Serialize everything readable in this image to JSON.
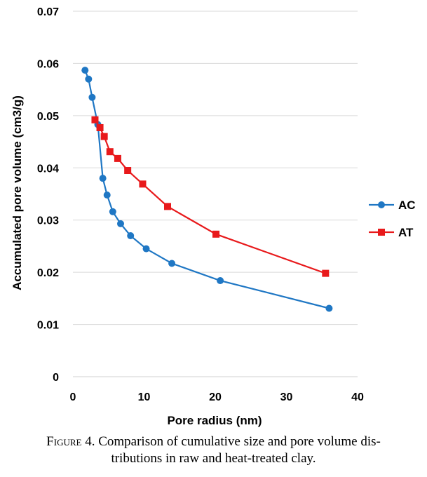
{
  "chart_data": {
    "type": "line",
    "xlabel": "Pore radius (nm)",
    "ylabel": "Accumulated pore volume (cm3/g)",
    "xlim": [
      0,
      40
    ],
    "ylim": [
      0,
      0.07
    ],
    "x_ticks": [
      "0",
      "10",
      "20",
      "30",
      "40"
    ],
    "y_ticks": [
      "0",
      "0.01",
      "0.02",
      "0.03",
      "0.04",
      "0.05",
      "0.06",
      "0.07"
    ],
    "grid": "horizontal",
    "legend_position": "right",
    "series": [
      {
        "name": "AC",
        "color": "#1f77c4",
        "marker": "circle",
        "points": [
          [
            1.7,
            0.0587
          ],
          [
            2.2,
            0.057
          ],
          [
            2.7,
            0.0535
          ],
          [
            3.5,
            0.0483
          ],
          [
            4.2,
            0.038
          ],
          [
            4.8,
            0.0348
          ],
          [
            5.6,
            0.0316
          ],
          [
            6.7,
            0.0293
          ],
          [
            8.1,
            0.027
          ],
          [
            10.3,
            0.0245
          ],
          [
            13.9,
            0.0217
          ],
          [
            20.7,
            0.0184
          ],
          [
            36.0,
            0.0131
          ]
        ]
      },
      {
        "name": "AT",
        "color": "#e8191b",
        "marker": "square",
        "points": [
          [
            3.1,
            0.0492
          ],
          [
            3.8,
            0.0477
          ],
          [
            4.4,
            0.046
          ],
          [
            5.2,
            0.0431
          ],
          [
            6.3,
            0.0418
          ],
          [
            7.7,
            0.0395
          ],
          [
            9.8,
            0.0369
          ],
          [
            13.3,
            0.0326
          ],
          [
            20.1,
            0.0273
          ],
          [
            35.5,
            0.0198
          ]
        ]
      }
    ]
  },
  "caption": {
    "lead": "Figure 4.",
    "line1": "Comparison of cumulative size and pore volume dis-",
    "line2": "tributions in raw and heat-treated clay."
  }
}
